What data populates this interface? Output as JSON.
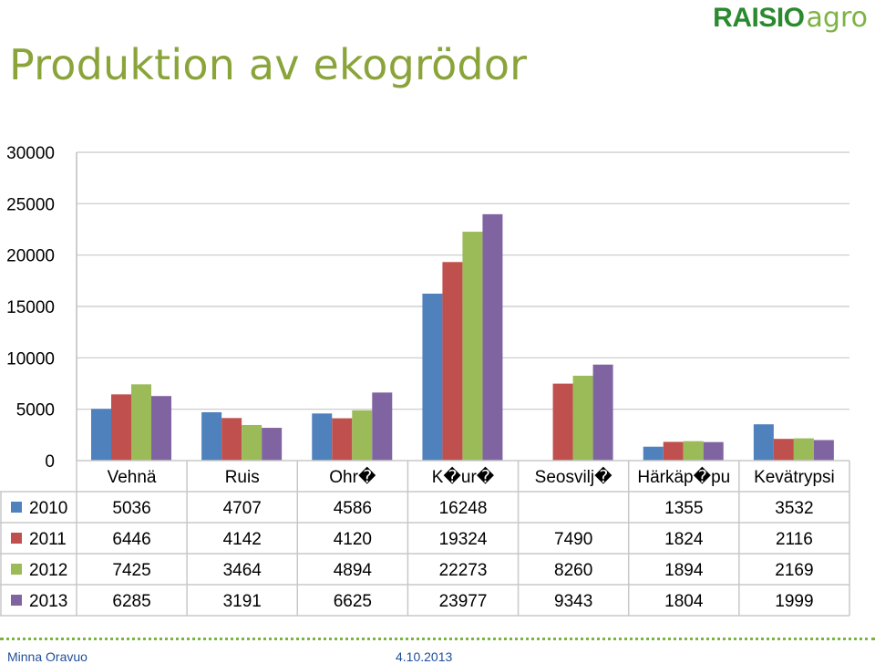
{
  "header": {
    "title": "Produktion av ekogrödor",
    "logo_brand": "RAISIO",
    "logo_sub": "agro"
  },
  "footer": {
    "author": "Minna Oravuo",
    "date": "4.10.2013"
  },
  "colors": {
    "title": "#8aa43a",
    "logo": "#2a8a2e",
    "footer_text": "#1f4e9a",
    "series": [
      "#4f81bd",
      "#c0504d",
      "#9bbb59",
      "#8064a2"
    ]
  },
  "chart_data": {
    "type": "bar",
    "title": "",
    "xlabel": "",
    "ylabel": "",
    "ylim": [
      0,
      30000
    ],
    "yticks": [
      "30000",
      "25000",
      "20000",
      "15000",
      "10000",
      "5000",
      "0"
    ],
    "grid": true,
    "legend": "in data table, left",
    "categories": [
      "Vehnä",
      "Ruis",
      "Ohr�",
      "K�ur�",
      "Seosvilj�",
      "Härkäp�pu",
      "Kevätrypsi"
    ],
    "series": [
      {
        "name": "2010",
        "values": [
          5036,
          4707,
          4586,
          16248,
          null,
          1355,
          3532
        ],
        "labels": [
          "5036",
          "4707",
          "4586",
          "16248",
          "",
          "1355",
          "3532"
        ]
      },
      {
        "name": "2011",
        "values": [
          6446,
          4142,
          4120,
          19324,
          7490,
          1824,
          2116
        ],
        "labels": [
          "6446",
          "4142",
          "4120",
          "19324",
          "7490",
          "1824",
          "2116"
        ]
      },
      {
        "name": "2012",
        "values": [
          7425,
          3464,
          4894,
          22273,
          8260,
          1894,
          2169
        ],
        "labels": [
          "7425",
          "3464",
          "4894",
          "22273",
          "8260",
          "1894",
          "2169"
        ]
      },
      {
        "name": "2013",
        "values": [
          6285,
          3191,
          6625,
          23977,
          9343,
          1804,
          1999
        ],
        "labels": [
          "6285",
          "3191",
          "6625",
          "23977",
          "9343",
          "1804",
          "1999"
        ]
      }
    ]
  }
}
